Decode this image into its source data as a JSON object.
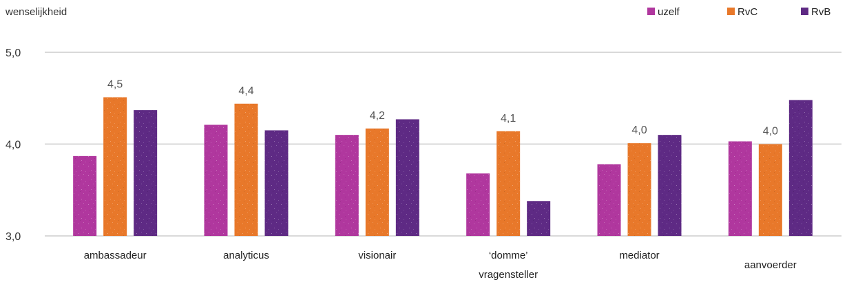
{
  "chart_data": {
    "type": "bar",
    "ylabel": "wenselijkheid",
    "ylim": [
      3.0,
      5.0
    ],
    "yticks": [
      "3,0",
      "4,0",
      "5,0"
    ],
    "ytick_values": [
      3.0,
      4.0,
      5.0
    ],
    "grid": true,
    "legend_position": "top-right",
    "categories": [
      [
        "ambassadeur"
      ],
      [
        "analyticus"
      ],
      [
        "visionair"
      ],
      [
        "‘domme’",
        "vragensteller"
      ],
      [
        "mediator"
      ],
      [
        "aanvoerder"
      ]
    ],
    "series": [
      {
        "name": "uzelf",
        "color": "#b0379e",
        "values": [
          3.87,
          4.21,
          4.1,
          3.68,
          3.78,
          4.03
        ]
      },
      {
        "name": "RvC",
        "color": "#e8782a",
        "values": [
          4.51,
          4.44,
          4.17,
          4.14,
          4.01,
          4.0
        ]
      },
      {
        "name": "RvB",
        "color": "#5e2a84",
        "values": [
          4.37,
          4.15,
          4.27,
          3.38,
          4.1,
          4.48
        ]
      }
    ],
    "data_labels": [
      "4,5",
      "4,4",
      "4,2",
      "4,1",
      "4,0",
      "4,0"
    ]
  }
}
